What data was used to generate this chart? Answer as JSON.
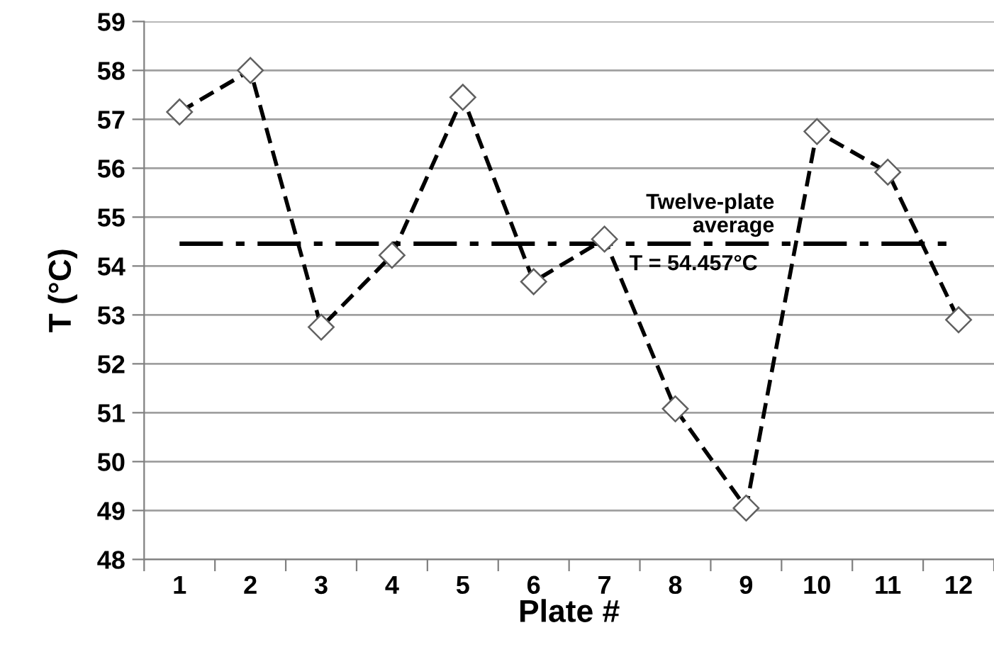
{
  "chart_data": {
    "type": "line",
    "xlabel": "Plate #",
    "ylabel": "T (°C)",
    "categories": [
      "1",
      "2",
      "3",
      "4",
      "5",
      "6",
      "7",
      "8",
      "9",
      "10",
      "11",
      "12"
    ],
    "series": [
      {
        "color": "#000000",
        "values": [
          57.15,
          58.0,
          52.75,
          54.22,
          57.45,
          53.68,
          54.55,
          51.08,
          49.05,
          56.75,
          55.92,
          52.9
        ]
      }
    ],
    "ylim": [
      48,
      59
    ],
    "yticks": [
      48,
      49,
      50,
      51,
      52,
      53,
      54,
      55,
      56,
      57,
      58,
      59
    ],
    "grid": "y",
    "marker": "diamond",
    "line_style": "dashed",
    "ref_lines": [
      {
        "axis": "y",
        "value": 54.457,
        "label": "Twelve-plate\naverage",
        "color": "#000000",
        "line_style": "dashdot"
      }
    ],
    "annotations": [
      "T = 54.457°C"
    ]
  }
}
